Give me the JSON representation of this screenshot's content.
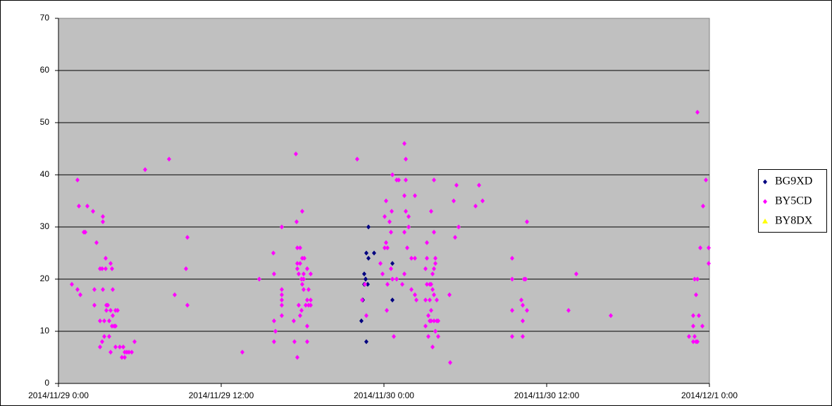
{
  "chart_data": {
    "type": "scatter",
    "xlim": [
      41972,
      41974
    ],
    "xticks": [
      {
        "value": 41972,
        "label": "2014/11/29 0:00"
      },
      {
        "value": 41972.5,
        "label": "2014/11/29 12:00"
      },
      {
        "value": 41973,
        "label": "2014/11/30 0:00"
      },
      {
        "value": 41973.5,
        "label": "2014/11/30 12:00"
      },
      {
        "value": 41974,
        "label": "2014/12/1 0:00"
      }
    ],
    "ylim": [
      0,
      70
    ],
    "yticks": [
      0,
      10,
      20,
      30,
      40,
      50,
      60,
      70
    ],
    "grid": true,
    "legend": "right",
    "series": [
      {
        "name": "BG9XD",
        "color": "#000080",
        "marker": "diamond",
        "x": [
          41972.9307,
          41972.9351,
          41972.9394,
          41972.9394,
          41972.9437,
          41972.9437,
          41972.9459,
          41972.9459,
          41972.9502,
          41972.9524,
          41972.9524,
          41972.9697,
          41973.026,
          41973.026
        ],
        "values": [
          12,
          16,
          21,
          19,
          20,
          20,
          8,
          25,
          19,
          30,
          24,
          25,
          23,
          16
        ]
      },
      {
        "name": "BY5CD",
        "color": "#ff00ff",
        "marker": "diamond",
        "x": [
          41972.0411,
          41972.0584,
          41972.0584,
          41972.0628,
          41972.0671,
          41972.0779,
          41972.0823,
          41972.0887,
          41972.1061,
          41972.1104,
          41972.1104,
          41972.1169,
          41972.1277,
          41972.1277,
          41972.1277,
          41972.1342,
          41972.1342,
          41972.1364,
          41972.1364,
          41972.1364,
          41972.1407,
          41972.1407,
          41972.145,
          41972.145,
          41972.1472,
          41972.1472,
          41972.1515,
          41972.1558,
          41972.1558,
          41972.1602,
          41972.1602,
          41972.1602,
          41972.1645,
          41972.1645,
          41972.1667,
          41972.1667,
          41972.171,
          41972.1753,
          41972.1753,
          41972.1753,
          41972.1818,
          41972.1883,
          41972.1948,
          41972.1991,
          41972.2035,
          41972.2035,
          41972.21,
          41972.2165,
          41972.2251,
          41972.2338,
          41972.2662,
          41972.3398,
          41972.3571,
          41972.3918,
          41972.3961,
          41972.3961,
          41972.5649,
          41972.6169,
          41972.6602,
          41972.6623,
          41972.6623,
          41972.6623,
          41972.6667,
          41972.6861,
          41972.6861,
          41972.6861,
          41972.6861,
          41972.6861,
          41972.6861,
          41972.7229,
          41972.7251,
          41972.7294,
          41972.7316,
          41972.7338,
          41972.7338,
          41972.7338,
          41972.7338,
          41972.7381,
          41972.7381,
          41972.7424,
          41972.7424,
          41972.7424,
          41972.7468,
          41972.7468,
          41972.7489,
          41972.7489,
          41972.7489,
          41972.7532,
          41972.7532,
          41972.7532,
          41972.7554,
          41972.7597,
          41972.7641,
          41972.7641,
          41972.7641,
          41972.7641,
          41972.7684,
          41972.7684,
          41972.7749,
          41972.7749,
          41972.7749,
          41972.9177,
          41972.9329,
          41972.9416,
          41972.9459,
          41972.9892,
          41972.9957,
          41973.0022,
          41973.0022,
          41973.0065,
          41973.0065,
          41973.0087,
          41973.0108,
          41973.0108,
          41973.0173,
          41973.0216,
          41973.0216,
          41973.0238,
          41973.026,
          41973.026,
          41973.0303,
          41973.039,
          41973.039,
          41973.0455,
          41973.0563,
          41973.0628,
          41973.0628,
          41973.0628,
          41973.0628,
          41973.0671,
          41973.0671,
          41973.0671,
          41973.0714,
          41973.0758,
          41973.0758,
          41973.0844,
          41973.0844,
          41973.0952,
          41973.0952,
          41973.0952,
          41973.0996,
          41973.1277,
          41973.1277,
          41973.1277,
          41973.132,
          41973.132,
          41973.132,
          41973.1364,
          41973.1364,
          41973.1407,
          41973.1407,
          41973.1407,
          41973.145,
          41973.145,
          41973.145,
          41973.145,
          41973.1494,
          41973.1494,
          41973.1494,
          41973.1537,
          41973.1537,
          41973.1537,
          41973.1537,
          41973.1537,
          41973.158,
          41973.158,
          41973.158,
          41973.1623,
          41973.1623,
          41973.1667,
          41973.1667,
          41973.2013,
          41973.2035,
          41973.2143,
          41973.2186,
          41973.2229,
          41973.2294,
          41973.2814,
          41973.2922,
          41973.303,
          41973.3939,
          41973.3939,
          41973.3939,
          41973.3939,
          41973.4221,
          41973.4264,
          41973.4264,
          41973.4264,
          41973.4307,
          41973.4351,
          41973.4394,
          41973.4394,
          41973.5671,
          41973.5909,
          41973.697,
          41973.9372,
          41973.9502,
          41973.9502,
          41973.9502,
          41973.9545,
          41973.9545,
          41973.9589,
          41973.9589,
          41973.9632,
          41973.9632,
          41973.9632,
          41973.9675,
          41973.9719,
          41973.9784,
          41973.9805,
          41973.9892,
          41973.9978,
          41973.9978
        ],
        "values": [
          19,
          39,
          18,
          34,
          17,
          29,
          29,
          34,
          33,
          18,
          15,
          27,
          22,
          12,
          7,
          22,
          8,
          32,
          31,
          18,
          12,
          9,
          24,
          22,
          15,
          14,
          15,
          12,
          9,
          23,
          14,
          6,
          22,
          11,
          18,
          13,
          11,
          11,
          14,
          7,
          14,
          7,
          5,
          7,
          6,
          5,
          6,
          6,
          6,
          8,
          41,
          43,
          17,
          22,
          28,
          15,
          6,
          20,
          25,
          21,
          12,
          8,
          10,
          30,
          18,
          17,
          16,
          15,
          13,
          12,
          8,
          44,
          31,
          26,
          23,
          22,
          5,
          21,
          15,
          26,
          23,
          13,
          20,
          14,
          33,
          24,
          19,
          21,
          20,
          18,
          24,
          15,
          22,
          16,
          11,
          8,
          18,
          15,
          21,
          16,
          15,
          43,
          16,
          19,
          13,
          23,
          21,
          32,
          26,
          35,
          27,
          14,
          19,
          26,
          31,
          22,
          29,
          33,
          40,
          20,
          9,
          39,
          20,
          39,
          19,
          46,
          36,
          29,
          21,
          43,
          39,
          33,
          26,
          30,
          32,
          18,
          24,
          24,
          17,
          36,
          16,
          22,
          16,
          11,
          24,
          27,
          19,
          13,
          9,
          19,
          16,
          12,
          19,
          14,
          12,
          33,
          18,
          21,
          7,
          29,
          39,
          12,
          22,
          17,
          24,
          23,
          10,
          16,
          12,
          12,
          9,
          17,
          4,
          35,
          28,
          38,
          30,
          34,
          38,
          35,
          24,
          20,
          14,
          9,
          16,
          12,
          15,
          9,
          20,
          20,
          31,
          14,
          14,
          21,
          13,
          9,
          13,
          11,
          8,
          20,
          9,
          17,
          8,
          52,
          20,
          8,
          13,
          26,
          11,
          34,
          39,
          23,
          26
        ]
      },
      {
        "name": "BY8DX",
        "color": "#ffff00",
        "marker": "triangle",
        "x": [],
        "values": []
      }
    ]
  }
}
